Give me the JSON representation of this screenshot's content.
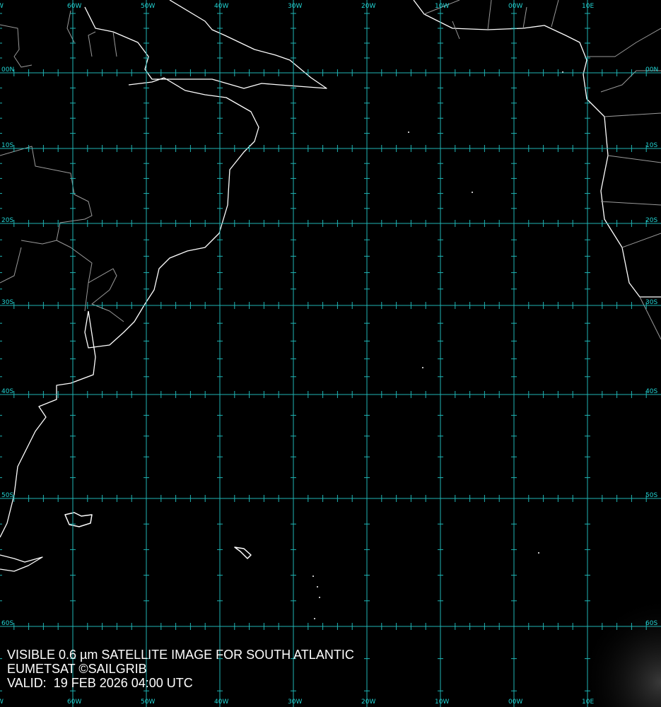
{
  "map": {
    "colors": {
      "grid": "#1fb5b5",
      "label": "#22d3d3",
      "coast": "#ffffff",
      "border": "#9a9a9a",
      "background": "#000000"
    },
    "longitudes": [
      {
        "value": -70,
        "label": "W"
      },
      {
        "value": -60,
        "label": "60W"
      },
      {
        "value": -50,
        "label": "50W"
      },
      {
        "value": -40,
        "label": "40W"
      },
      {
        "value": -30,
        "label": "30W"
      },
      {
        "value": -20,
        "label": "20W"
      },
      {
        "value": -10,
        "label": "10W"
      },
      {
        "value": 0,
        "label": "00W"
      },
      {
        "value": 10,
        "label": "10E"
      }
    ],
    "latitudes": [
      {
        "value": 0,
        "label": "00N"
      },
      {
        "value": -10,
        "label": "10S"
      },
      {
        "value": -20,
        "label": "20S"
      },
      {
        "value": -30,
        "label": "30S"
      },
      {
        "value": -40,
        "label": "40S"
      },
      {
        "value": -50,
        "label": "50S"
      },
      {
        "value": -60,
        "label": "60S"
      }
    ]
  },
  "caption": {
    "line1": "VISIBLE 0.6 µm SATELLITE IMAGE FOR SOUTH ATLANTIC",
    "line2": "EUMETSAT ©SAILGRIB",
    "line3": "VALID:  19 FEB 2026 04:00 UTC"
  }
}
